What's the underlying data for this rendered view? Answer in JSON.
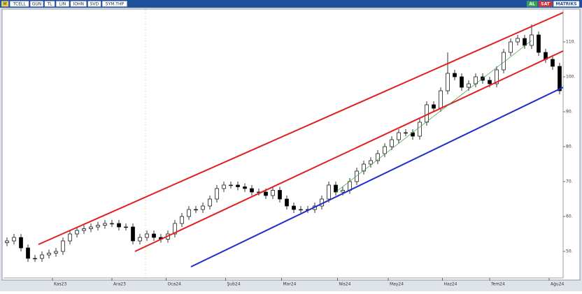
{
  "toolbar": {
    "items": [
      "M",
      "TCELL",
      "GUN",
      "TL",
      "LIN",
      "IOHN",
      "SVD",
      "SYM.THP"
    ],
    "right": [
      "AL",
      "SAT",
      "MATRIKS"
    ]
  },
  "chart_data": {
    "type": "candlestick",
    "x": [
      2,
      6,
      10,
      14,
      18,
      22,
      26,
      30,
      34,
      38,
      42,
      46,
      50,
      54,
      58,
      62,
      66,
      70,
      74,
      78,
      82,
      86,
      90,
      94,
      98,
      102,
      106,
      110,
      114,
      118,
      122,
      126,
      130,
      134,
      138,
      142,
      146,
      150,
      154,
      158,
      162,
      166,
      170,
      174,
      178,
      182,
      186,
      190,
      194,
      198,
      202,
      206,
      210,
      214,
      218,
      222,
      226,
      230,
      234,
      238,
      242,
      246,
      250,
      254,
      258,
      262,
      266,
      270,
      274,
      278,
      282,
      286,
      290,
      294,
      298,
      302,
      306,
      310,
      314,
      318
    ],
    "open": [
      52.5,
      53,
      54,
      51,
      48,
      48,
      49,
      49.5,
      50,
      53,
      55,
      56,
      56.5,
      57,
      57.5,
      58,
      58,
      57,
      57,
      53,
      54,
      55,
      54,
      53.5,
      55,
      58,
      60,
      62,
      62,
      63,
      65,
      68,
      69,
      69,
      68.5,
      68,
      67,
      67,
      66,
      67.5,
      65,
      63,
      62,
      62,
      62,
      63,
      65,
      69,
      67,
      67.5,
      70,
      73,
      75,
      76,
      78,
      80,
      82,
      84,
      84,
      83,
      87,
      92,
      91,
      96,
      101,
      100,
      97,
      98,
      100,
      99,
      98,
      102,
      107,
      110,
      111,
      109,
      112,
      107,
      105,
      103
    ],
    "high": [
      54,
      55,
      55,
      52,
      49,
      50,
      50.5,
      51,
      54,
      56,
      57,
      57.5,
      58,
      58.5,
      59,
      59,
      59,
      58,
      58,
      55,
      56,
      56,
      55,
      56,
      59,
      61,
      63,
      63,
      64,
      66,
      69,
      70,
      70,
      70,
      69.5,
      69,
      68,
      68,
      68.5,
      68.5,
      66,
      64,
      63,
      63,
      64,
      66,
      70,
      70,
      68.5,
      71,
      74,
      76,
      77,
      79,
      81,
      83,
      85,
      85,
      85,
      88,
      93,
      93,
      97,
      107,
      102,
      101,
      99,
      101,
      101,
      100,
      103,
      108,
      111,
      112,
      112,
      115,
      113,
      108,
      106,
      104
    ],
    "low": [
      51.5,
      52,
      50,
      47,
      47,
      47,
      48,
      48.5,
      49,
      52,
      54,
      55,
      55.5,
      56,
      56.5,
      57,
      56,
      56,
      52,
      52,
      53,
      53,
      52.5,
      52.5,
      54,
      57,
      59,
      61,
      61,
      62,
      64,
      67,
      68,
      67.5,
      67,
      66,
      66,
      65,
      65,
      64,
      62,
      61,
      61,
      61,
      61,
      62,
      64,
      66,
      66,
      66.5,
      69,
      72,
      74,
      75,
      77,
      79,
      81,
      83,
      82,
      82,
      86,
      90,
      90,
      95,
      99,
      96,
      96,
      97,
      98,
      97,
      97,
      101,
      106,
      109,
      108,
      108,
      106,
      104,
      102,
      95
    ],
    "close": [
      53,
      54,
      51,
      48,
      48,
      49,
      49.5,
      50,
      53,
      55,
      56,
      56.5,
      57,
      57.5,
      58,
      58,
      57,
      57,
      53,
      54,
      55,
      54,
      53.5,
      55,
      58,
      60,
      62,
      62,
      63,
      65,
      68,
      69,
      69,
      68.5,
      68,
      67,
      67,
      66,
      67.5,
      65,
      63,
      62,
      62,
      62,
      63,
      65,
      69,
      67,
      67.5,
      70,
      73,
      75,
      76,
      78,
      80,
      82,
      84,
      84,
      83,
      87,
      92,
      91,
      96,
      101,
      100,
      97,
      98,
      100,
      99,
      98,
      102,
      107,
      110,
      111,
      109,
      112,
      107,
      105,
      103,
      96
    ],
    "up_color": "#ffffff",
    "down_color": "#000000",
    "xlim": [
      0,
      320
    ],
    "ylim": [
      42.4,
      119.2
    ],
    "xticks": [
      {
        "value": 28,
        "label": "Kas23"
      },
      {
        "value": 62,
        "label": "Ara23"
      },
      {
        "value": 93,
        "label": "Oca24"
      },
      {
        "value": 127,
        "label": "Şub24"
      },
      {
        "value": 159,
        "label": "Mar24"
      },
      {
        "value": 191,
        "label": "Nis24"
      },
      {
        "value": 220,
        "label": "May24"
      },
      {
        "value": 251,
        "label": "Haz24"
      },
      {
        "value": 278,
        "label": "Tem24"
      },
      {
        "value": 312,
        "label": "Ağu24"
      }
    ],
    "yticks": [
      {
        "value": 50,
        "label": "50."
      },
      {
        "value": 60,
        "label": "60."
      },
      {
        "value": 70,
        "label": "70."
      },
      {
        "value": 80,
        "label": "80."
      },
      {
        "value": 90,
        "label": "90."
      },
      {
        "value": 100,
        "label": "100."
      },
      {
        "value": 110,
        "label": "110."
      }
    ],
    "trend_lines": [
      {
        "color": "#e02020",
        "width": 2,
        "x": [
          20,
          320
        ],
        "y": [
          52,
          118.4
        ]
      },
      {
        "color": "#e02020",
        "width": 2,
        "x": [
          75.2,
          320
        ],
        "y": [
          50,
          107.4
        ]
      },
      {
        "color": "#1f2fc8",
        "width": 2,
        "x": [
          107.2,
          320
        ],
        "y": [
          45.6,
          97
        ]
      },
      {
        "color": "#3a9a3a",
        "width": 0.7,
        "x": [
          190,
          302
        ],
        "y": [
          67,
          110.4
        ]
      }
    ]
  }
}
